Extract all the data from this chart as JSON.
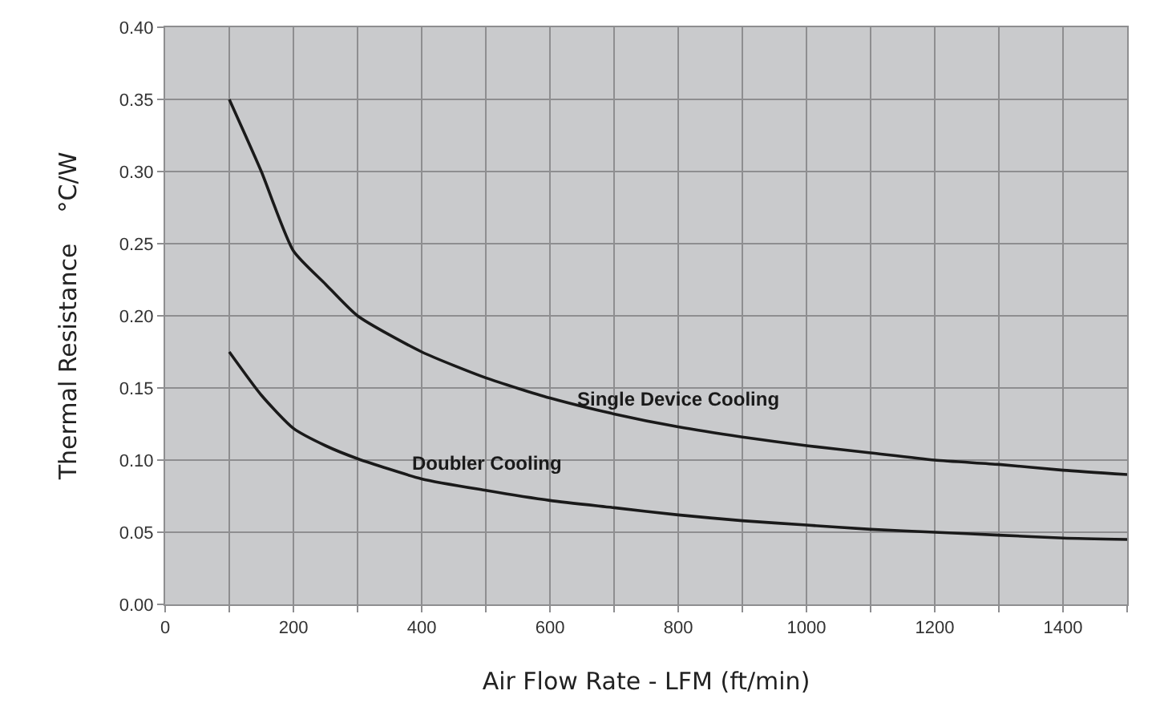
{
  "chart_data": {
    "type": "line",
    "xlabel": "Air Flow Rate - LFM (ft/min)",
    "ylabel": "Thermal Resistance    °C/W",
    "xlim": [
      0,
      1500
    ],
    "xticks": [
      0,
      {
        "value": 100,
        "label": null
      },
      200,
      {
        "value": 300,
        "label": null
      },
      400,
      {
        "value": 500,
        "label": null
      },
      600,
      {
        "value": 700,
        "label": null
      },
      800,
      {
        "value": 900,
        "label": null
      },
      1000,
      {
        "value": 1100,
        "label": null
      },
      1200,
      {
        "value": 1300,
        "label": null
      },
      1400,
      {
        "value": 1500,
        "label": null
      }
    ],
    "ylim": [
      0,
      0.4
    ],
    "yticks": [
      {
        "value": 0,
        "label": "0.00"
      },
      {
        "value": 0.05,
        "label": "0.05"
      },
      {
        "value": 0.1,
        "label": "0.10"
      },
      {
        "value": 0.15,
        "label": "0.15"
      },
      {
        "value": 0.2,
        "label": "0.20"
      },
      {
        "value": 0.25,
        "label": "0.25"
      },
      {
        "value": 0.3,
        "label": "0.30"
      },
      {
        "value": 0.35,
        "label": "0.35"
      },
      {
        "value": 0.4,
        "label": "0.40"
      }
    ],
    "grid": true,
    "legend": false,
    "marker": "none",
    "line_style": "solid",
    "series": [
      {
        "name": "Single Device Cooling",
        "color": "#1a1a1a",
        "x": [
          100,
          150,
          200,
          250,
          300,
          400,
          500,
          600,
          700,
          800,
          900,
          1000,
          1100,
          1200,
          1300,
          1400,
          1500
        ],
        "values": [
          0.35,
          0.3,
          0.245,
          0.222,
          0.2,
          0.175,
          0.157,
          0.143,
          0.132,
          0.123,
          0.116,
          0.11,
          0.105,
          0.1,
          0.097,
          0.093,
          0.09
        ]
      },
      {
        "name": "Doubler Cooling",
        "color": "#1a1a1a",
        "x": [
          100,
          150,
          200,
          250,
          300,
          400,
          500,
          600,
          700,
          800,
          900,
          1000,
          1100,
          1200,
          1300,
          1400,
          1500
        ],
        "values": [
          0.175,
          0.145,
          0.122,
          0.11,
          0.101,
          0.087,
          0.079,
          0.072,
          0.067,
          0.062,
          0.058,
          0.055,
          0.052,
          0.05,
          0.048,
          0.046,
          0.045
        ]
      }
    ]
  }
}
